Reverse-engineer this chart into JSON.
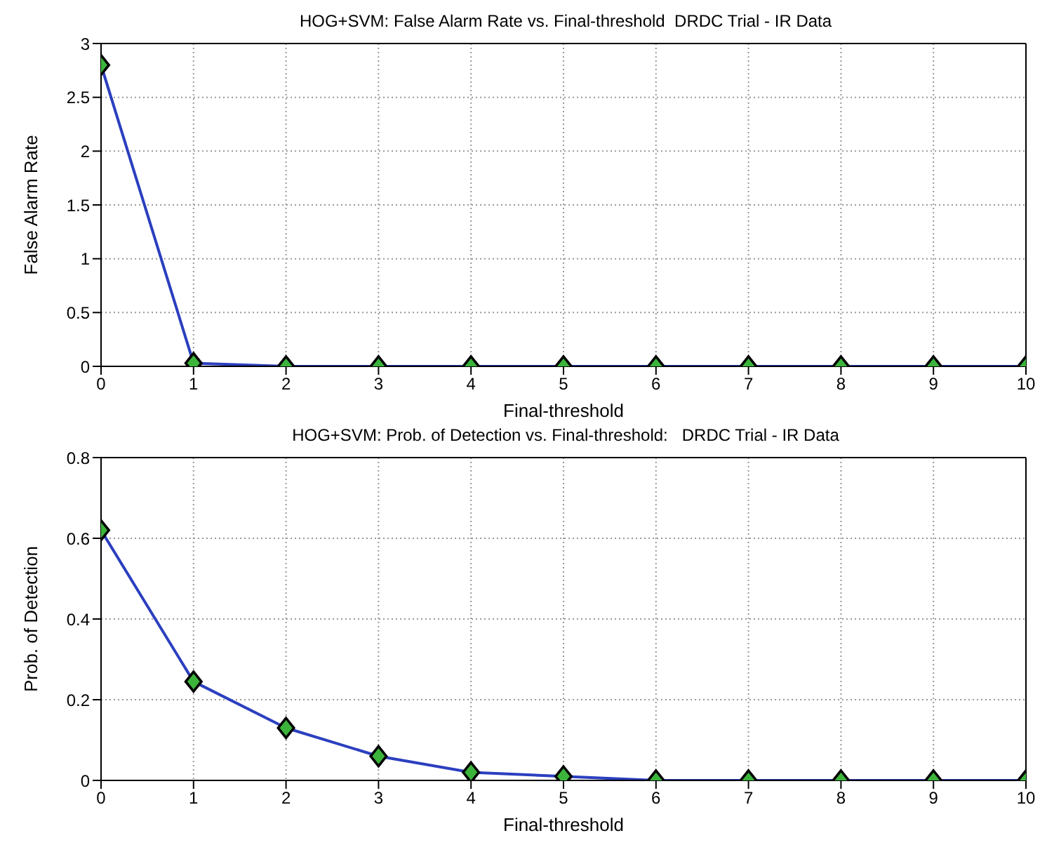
{
  "chart_data": [
    {
      "type": "line",
      "title": "HOG+SVM: False Alarm Rate vs. Final-threshold  DRDC Trial - IR Data",
      "xlabel": "Final-threshold",
      "ylabel": "False Alarm Rate",
      "x": [
        0,
        1,
        2,
        3,
        4,
        5,
        6,
        7,
        8,
        9,
        10
      ],
      "series": [
        {
          "color": "#2b3fbf",
          "values": [
            2.8,
            0.03,
            0,
            0,
            0,
            0,
            0,
            0,
            0,
            0,
            0
          ]
        }
      ],
      "xlim": [
        0,
        10
      ],
      "xticks": [
        0,
        1,
        2,
        3,
        4,
        5,
        6,
        7,
        8,
        9,
        10
      ],
      "ylim": [
        0,
        3
      ],
      "yticks": [
        0,
        0.5,
        1,
        1.5,
        2,
        2.5,
        3
      ],
      "grid": true,
      "marker": "diamond",
      "line_style": "solid",
      "legend": false
    },
    {
      "type": "line",
      "title": "HOG+SVM: Prob. of Detection vs. Final-threshold:   DRDC Trial - IR Data",
      "xlabel": "Final-threshold",
      "ylabel": "Prob. of Detection",
      "x": [
        0,
        1,
        2,
        3,
        4,
        5,
        6,
        7,
        8,
        9,
        10
      ],
      "series": [
        {
          "color": "#2b3fbf",
          "values": [
            0.62,
            0.245,
            0.13,
            0.06,
            0.02,
            0.01,
            0,
            0,
            0,
            0,
            0
          ]
        }
      ],
      "xlim": [
        0,
        10
      ],
      "xticks": [
        0,
        1,
        2,
        3,
        4,
        5,
        6,
        7,
        8,
        9,
        10
      ],
      "ylim": [
        0,
        0.8
      ],
      "yticks": [
        0,
        0.2,
        0.4,
        0.6,
        0.8
      ],
      "grid": true,
      "marker": "diamond",
      "line_style": "solid",
      "legend": false
    }
  ]
}
